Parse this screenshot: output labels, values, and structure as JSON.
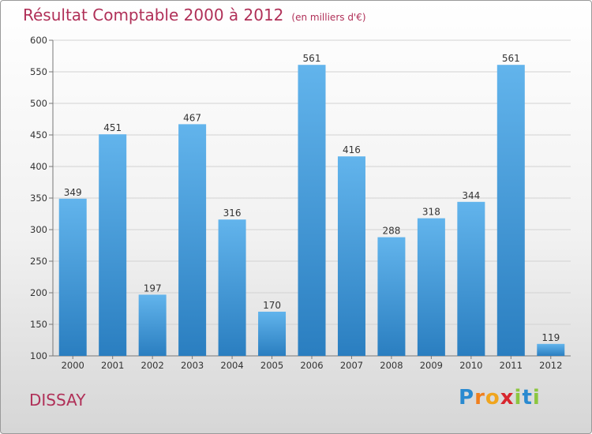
{
  "chart_data": {
    "type": "bar",
    "title": "Résultat Comptable 2000 à 2012",
    "subtitle": "(en milliers d'€)",
    "categories": [
      "2000",
      "2001",
      "2002",
      "2003",
      "2004",
      "2005",
      "2006",
      "2007",
      "2008",
      "2009",
      "2010",
      "2011",
      "2012"
    ],
    "values": [
      349,
      451,
      197,
      467,
      316,
      170,
      561,
      416,
      288,
      318,
      344,
      561,
      119
    ],
    "ylim": [
      100,
      600
    ],
    "yticks": [
      100,
      150,
      200,
      250,
      300,
      350,
      400,
      450,
      500,
      550,
      600
    ],
    "grid": true,
    "xlabel": "",
    "ylabel": ""
  },
  "commune": "DISSAY",
  "brand": {
    "letters": [
      "P",
      "r",
      "o",
      "x",
      "i",
      "t",
      "i"
    ],
    "colors": [
      "#2a8ad0",
      "#f07f1e",
      "#f0a51e",
      "#d8262e",
      "#8cc63f",
      "#2a8ad0",
      "#8cc63f"
    ]
  },
  "colors": {
    "bar_light": "#62b4ec",
    "bar_dark": "#2a7ec0",
    "title": "#b03058"
  }
}
